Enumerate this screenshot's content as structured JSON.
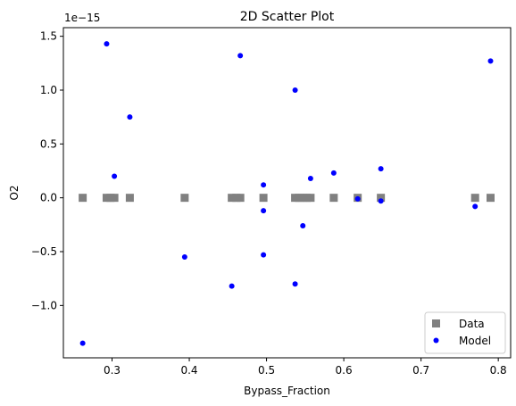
{
  "chart_data": {
    "type": "scatter",
    "title": "2D Scatter Plot",
    "xlabel": "Bypass_Fraction",
    "ylabel": "O2",
    "y_offset_label": "1e−15",
    "xlim": [
      0.237,
      0.816
    ],
    "ylim": [
      -1.486,
      1.58
    ],
    "x_ticks": [
      0.3,
      0.4,
      0.5,
      0.6,
      0.7,
      0.8
    ],
    "x_tick_labels": [
      "0.3",
      "0.4",
      "0.5",
      "0.6",
      "0.7",
      "0.8"
    ],
    "y_ticks": [
      -1.0,
      -0.5,
      0.0,
      0.5,
      1.0,
      1.5
    ],
    "y_tick_labels": [
      "−1.0",
      "−0.5",
      "0.0",
      "0.5",
      "1.0",
      "1.5"
    ],
    "grid": false,
    "legend_position": "lower-right",
    "series": [
      {
        "name": "Data",
        "marker": "square",
        "color": "#808080",
        "points": [
          {
            "x": 0.262,
            "y": 0
          },
          {
            "x": 0.293,
            "y": 0
          },
          {
            "x": 0.298,
            "y": 0
          },
          {
            "x": 0.303,
            "y": 0
          },
          {
            "x": 0.323,
            "y": 0
          },
          {
            "x": 0.394,
            "y": 0
          },
          {
            "x": 0.455,
            "y": 0
          },
          {
            "x": 0.461,
            "y": 0
          },
          {
            "x": 0.466,
            "y": 0
          },
          {
            "x": 0.496,
            "y": 0
          },
          {
            "x": 0.537,
            "y": 0
          },
          {
            "x": 0.542,
            "y": 0
          },
          {
            "x": 0.547,
            "y": 0
          },
          {
            "x": 0.552,
            "y": 0
          },
          {
            "x": 0.557,
            "y": 0
          },
          {
            "x": 0.587,
            "y": 0
          },
          {
            "x": 0.618,
            "y": 0
          },
          {
            "x": 0.648,
            "y": 0
          },
          {
            "x": 0.77,
            "y": 0
          },
          {
            "x": 0.79,
            "y": 0
          }
        ]
      },
      {
        "name": "Model",
        "marker": "circle",
        "color": "#0000ff",
        "points": [
          {
            "x": 0.262,
            "y": -1.35
          },
          {
            "x": 0.293,
            "y": 1.43
          },
          {
            "x": 0.303,
            "y": 0.2
          },
          {
            "x": 0.323,
            "y": 0.75
          },
          {
            "x": 0.394,
            "y": -0.55
          },
          {
            "x": 0.455,
            "y": -0.82
          },
          {
            "x": 0.466,
            "y": 1.32
          },
          {
            "x": 0.496,
            "y": 0.12
          },
          {
            "x": 0.496,
            "y": -0.12
          },
          {
            "x": 0.496,
            "y": -0.53
          },
          {
            "x": 0.537,
            "y": 1.0
          },
          {
            "x": 0.537,
            "y": -0.8
          },
          {
            "x": 0.547,
            "y": -0.26
          },
          {
            "x": 0.557,
            "y": 0.18
          },
          {
            "x": 0.587,
            "y": 0.23
          },
          {
            "x": 0.618,
            "y": -0.01
          },
          {
            "x": 0.648,
            "y": 0.27
          },
          {
            "x": 0.648,
            "y": -0.03
          },
          {
            "x": 0.77,
            "y": -0.08
          },
          {
            "x": 0.79,
            "y": 1.27
          }
        ]
      }
    ]
  }
}
